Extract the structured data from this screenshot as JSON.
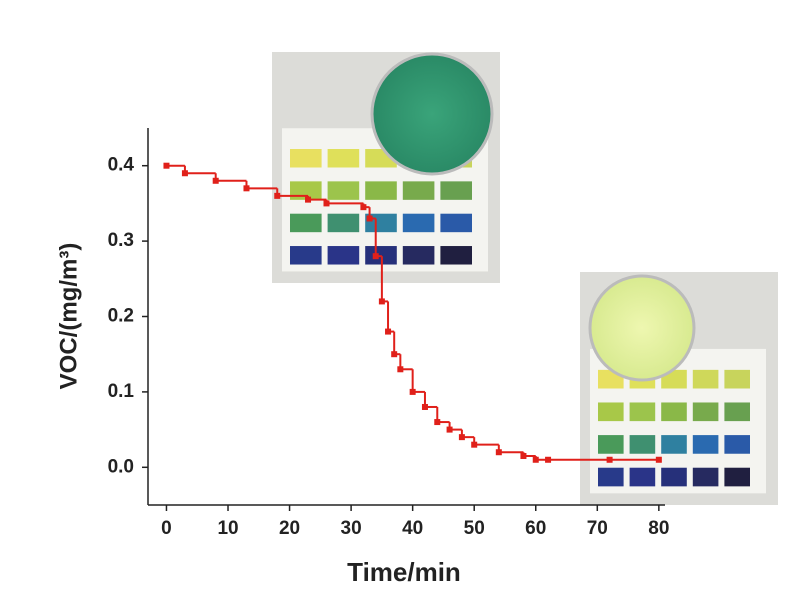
{
  "chart_data": {
    "type": "line",
    "step": true,
    "xlabel": "Time/min",
    "ylabel": "VOC/(mg/m³)",
    "color": "#e0201a",
    "x": [
      0,
      3,
      8,
      13,
      18,
      23,
      26,
      32,
      33,
      34,
      35,
      36,
      37,
      38,
      40,
      42,
      44,
      46,
      48,
      50,
      54,
      58,
      60,
      62,
      72,
      80
    ],
    "values": [
      0.4,
      0.39,
      0.38,
      0.37,
      0.36,
      0.355,
      0.35,
      0.345,
      0.33,
      0.28,
      0.22,
      0.18,
      0.15,
      0.13,
      0.1,
      0.08,
      0.06,
      0.05,
      0.04,
      0.03,
      0.02,
      0.015,
      0.01,
      0.01,
      0.01,
      0.01
    ],
    "xlim": [
      -3,
      81
    ],
    "ylim": [
      -0.05,
      0.45
    ],
    "xticks": [
      0,
      10,
      20,
      30,
      40,
      50,
      60,
      70,
      80
    ],
    "yticks": [
      {
        "value": 0,
        "label": "0.0"
      },
      0.1,
      0.2,
      0.3,
      0.4
    ],
    "grid": false
  }
}
